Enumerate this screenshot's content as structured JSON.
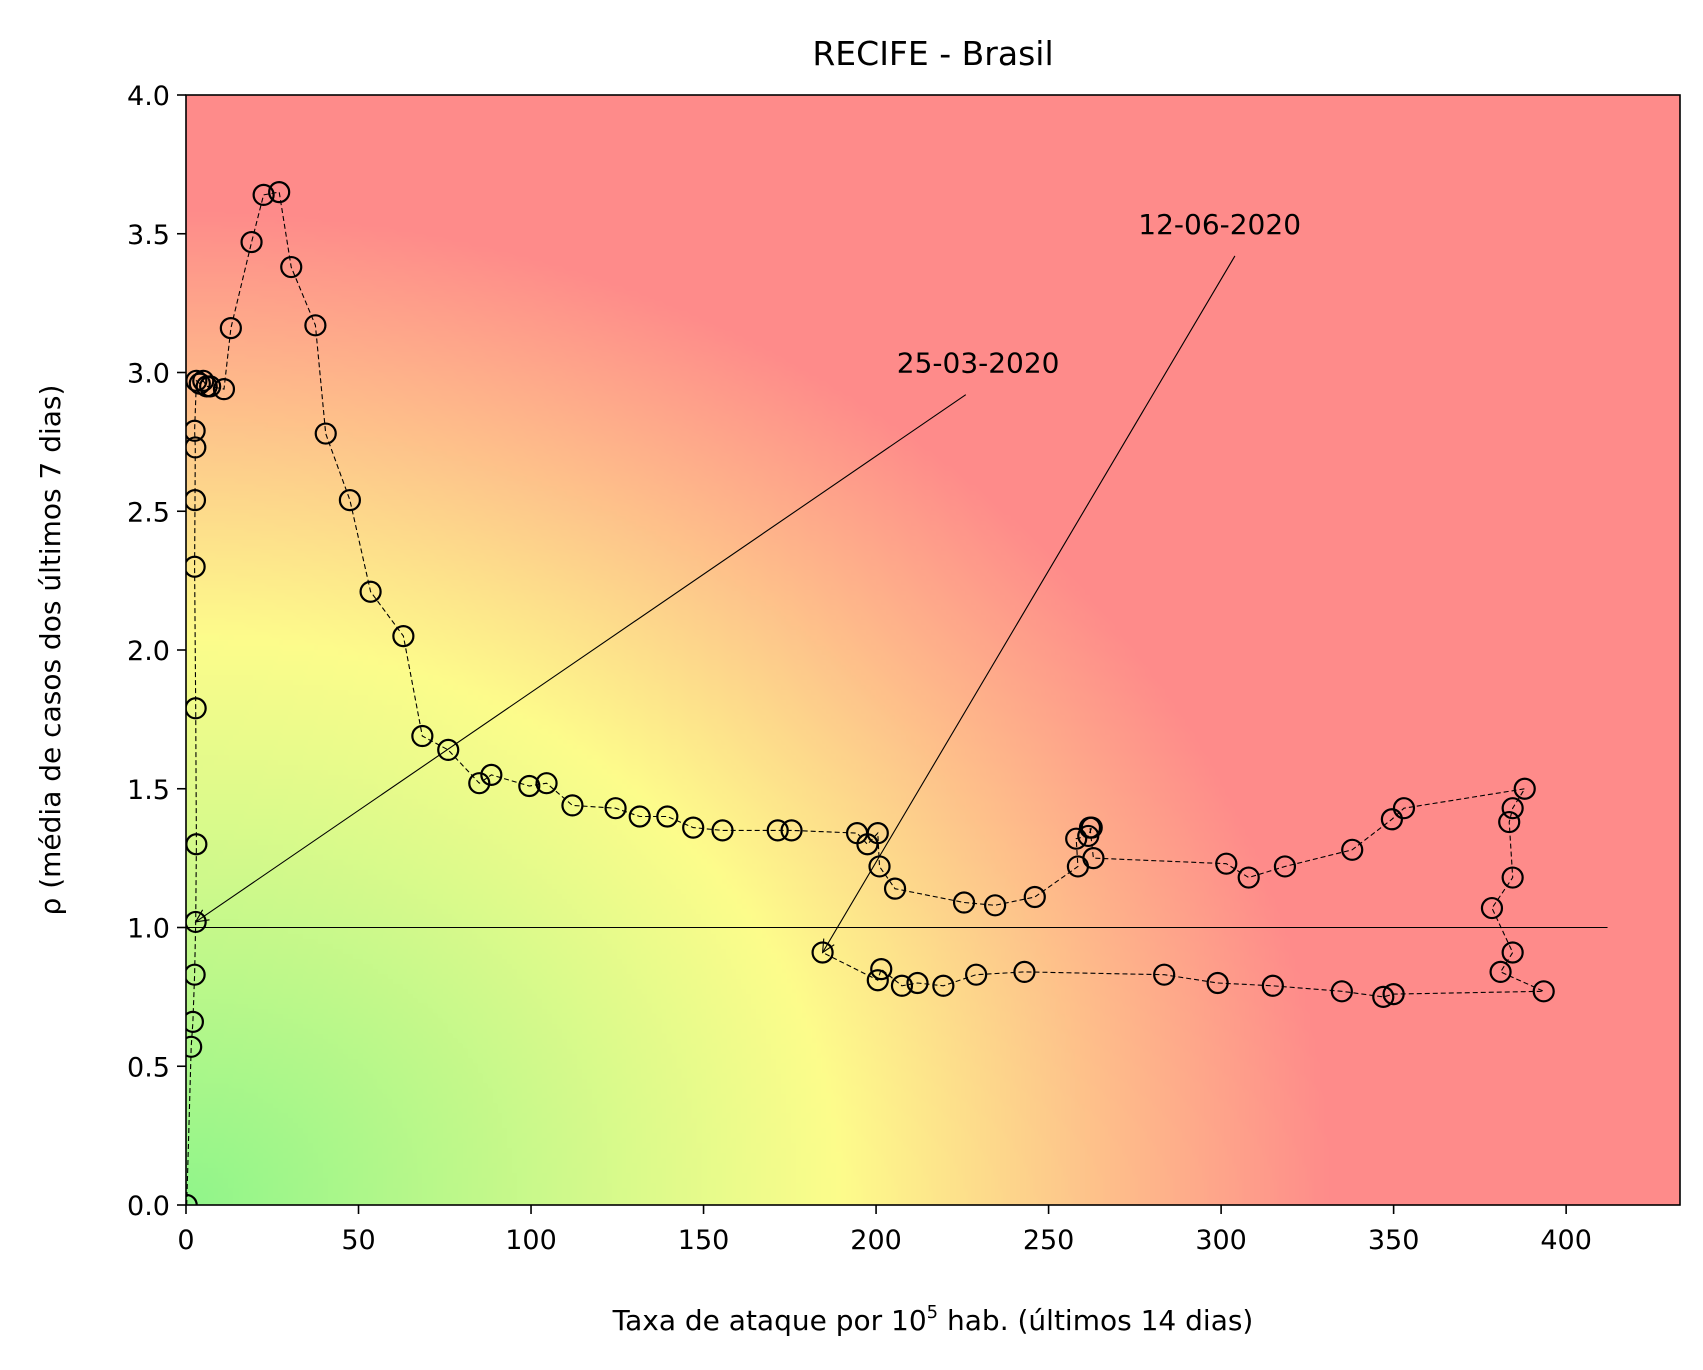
{
  "chart_data": {
    "type": "line",
    "title": "RECIFE - Brasil",
    "xlabel_main": "Taxa de ataque por 10",
    "xlabel_sup": "5",
    "xlabel_rest": " hab. (últimos 14 dias)",
    "ylabel": "ρ (média de casos dos últimos 7 dias)",
    "xlim": [
      0,
      433
    ],
    "ylim": [
      0,
      4.0
    ],
    "xticks": [
      0,
      50,
      100,
      150,
      200,
      250,
      300,
      350,
      400
    ],
    "yticks": [
      0.0,
      0.5,
      1.0,
      1.5,
      2.0,
      2.5,
      3.0,
      3.5,
      4.0
    ],
    "xtick_labels": [
      "0",
      "50",
      "100",
      "150",
      "200",
      "250",
      "300",
      "350",
      "400"
    ],
    "ytick_labels": [
      "0.0",
      "0.5",
      "1.0",
      "1.5",
      "2.0",
      "2.5",
      "3.0",
      "3.5",
      "4.0"
    ],
    "reference_line": {
      "y": 1.0,
      "x_range": [
        0,
        412
      ]
    },
    "background": {
      "low_risk": "#90f58a",
      "mid_risk": "#fdfc8b",
      "high_risk": "#fe8b8a"
    },
    "marker": {
      "shape": "circle",
      "fill": "none",
      "edge": "#000000"
    },
    "x": [
      0.2,
      1.5,
      2.0,
      2.5,
      2.8,
      3.0,
      2.8,
      2.5,
      2.6,
      2.7,
      2.5,
      3.0,
      4.0,
      5.0,
      6.0,
      7.0,
      11.0,
      13.0,
      19.0,
      22.5,
      27.0,
      30.5,
      37.5,
      40.5,
      47.5,
      53.5,
      63.0,
      68.5,
      76.0,
      85.0,
      88.5,
      99.5,
      104.5,
      112.0,
      124.5,
      131.5,
      139.5,
      147.0,
      155.5,
      171.5,
      175.5,
      194.5,
      197.5,
      200.5,
      201.0,
      205.5,
      225.5,
      234.5,
      246.0,
      258.5,
      258.0,
      261.5,
      262.5,
      262.0,
      263.0,
      301.5,
      308.0,
      318.5,
      338.0,
      349.5,
      353.0,
      388.0,
      384.5,
      383.5,
      384.5,
      378.5,
      384.5,
      381.0,
      393.5,
      350.0,
      347.0,
      335.0,
      315.0,
      299.0,
      283.5,
      243.0,
      229.0,
      219.5,
      212.0,
      207.5,
      201.5,
      200.5,
      184.5
    ],
    "y": [
      0.0,
      0.57,
      0.66,
      0.83,
      1.02,
      1.3,
      1.79,
      2.3,
      2.54,
      2.73,
      2.79,
      2.97,
      2.96,
      2.97,
      2.95,
      2.95,
      2.94,
      3.16,
      3.47,
      3.64,
      3.65,
      3.38,
      3.17,
      2.78,
      2.54,
      2.21,
      2.05,
      1.69,
      1.64,
      1.52,
      1.55,
      1.51,
      1.52,
      1.44,
      1.43,
      1.4,
      1.4,
      1.36,
      1.35,
      1.35,
      1.35,
      1.34,
      1.3,
      1.34,
      1.22,
      1.14,
      1.09,
      1.08,
      1.11,
      1.22,
      1.32,
      1.33,
      1.36,
      1.36,
      1.25,
      1.23,
      1.18,
      1.22,
      1.28,
      1.39,
      1.43,
      1.5,
      1.43,
      1.38,
      1.18,
      1.07,
      0.91,
      0.84,
      0.77,
      0.76,
      0.75,
      0.77,
      0.79,
      0.8,
      0.83,
      0.84,
      0.83,
      0.79,
      0.8,
      0.79,
      0.85,
      0.81,
      0.91
    ],
    "annotations": [
      {
        "text": "25-03-2020",
        "text_x": 206,
        "text_y": 3.0,
        "line_from": [
          226,
          2.92
        ],
        "arrow_to": [
          2.8,
          1.02
        ]
      },
      {
        "text": "12-06-2020",
        "text_x": 276,
        "text_y": 3.5,
        "line_from": [
          304,
          3.42
        ],
        "arrow_to": [
          184.5,
          0.91
        ]
      }
    ]
  }
}
